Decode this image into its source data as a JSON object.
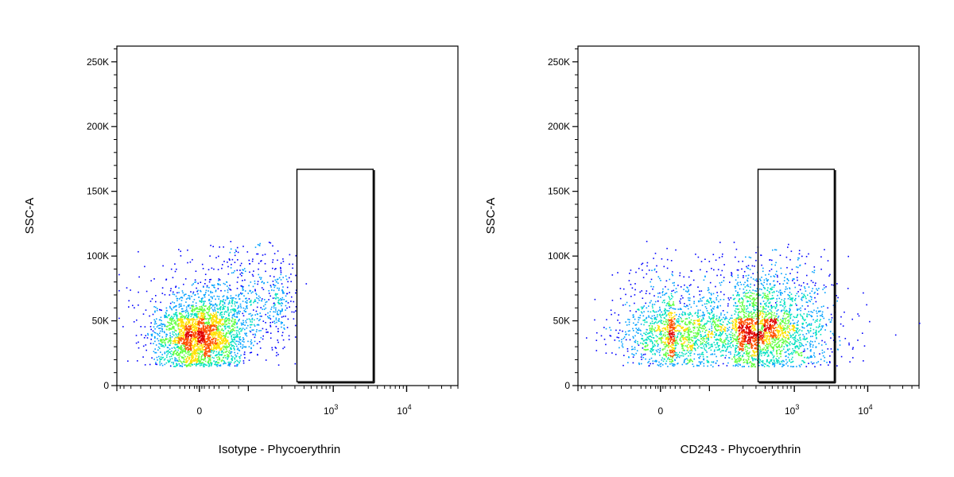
{
  "chart_data": [
    {
      "type": "scatter",
      "xlabel": "Isotype - Phycoerythrin",
      "ylabel": "SSC-A",
      "ylim": [
        0,
        262144
      ],
      "y_ticks": [
        {
          "value": 0,
          "label": "0"
        },
        {
          "value": 50000,
          "label": "50K"
        },
        {
          "value": 100000,
          "label": "100K"
        },
        {
          "value": 150000,
          "label": "150K"
        },
        {
          "value": 200000,
          "label": "200K"
        },
        {
          "value": 250000,
          "label": "250K"
        }
      ],
      "x_scale": "biexponential",
      "xlim": [
        -200,
        50000
      ],
      "x_ticks": [
        {
          "value": 0,
          "base": "0",
          "exp": ""
        },
        {
          "value": 1000,
          "base": "10",
          "exp": "3"
        },
        {
          "value": 10000,
          "base": "10",
          "exp": "4"
        }
      ],
      "gate": {
        "x_min": 320,
        "x_max": 3500,
        "y_min": 3000,
        "y_max": 167000
      },
      "population": {
        "events": 3000,
        "clusters": [
          {
            "x": 0,
            "x_spread": 45,
            "y": 38000,
            "y_spread": 14000,
            "weight": 0.75
          },
          {
            "x": 80,
            "x_spread": 90,
            "y": 65000,
            "y_spread": 20000,
            "weight": 0.25
          }
        ],
        "y_min": 15000,
        "y_max": 112000
      },
      "density_colors": [
        "#0000ff",
        "#00a0ff",
        "#00e0c0",
        "#60ff40",
        "#ffe000",
        "#ff5000",
        "#e00000"
      ]
    },
    {
      "type": "scatter",
      "xlabel": "CD243 - Phycoerythrin",
      "ylabel": "SSC-A",
      "ylim": [
        0,
        262144
      ],
      "y_ticks": [
        {
          "value": 0,
          "label": "0"
        },
        {
          "value": 50000,
          "label": "50K"
        },
        {
          "value": 100000,
          "label": "100K"
        },
        {
          "value": 150000,
          "label": "150K"
        },
        {
          "value": 200000,
          "label": "200K"
        },
        {
          "value": 250000,
          "label": "250K"
        }
      ],
      "x_scale": "biexponential",
      "xlim": [
        -200,
        50000
      ],
      "x_ticks": [
        {
          "value": 0,
          "base": "0",
          "exp": ""
        },
        {
          "value": 1000,
          "base": "10",
          "exp": "3"
        },
        {
          "value": 10000,
          "base": "10",
          "exp": "4"
        }
      ],
      "gate": {
        "x_min": 320,
        "x_max": 3500,
        "y_min": 3000,
        "y_max": 167000
      },
      "population": {
        "events": 3800,
        "clusters": [
          {
            "x": 220,
            "x_spread": 0.55,
            "log": true,
            "y": 38000,
            "y_spread": 13000,
            "weight": 0.7
          },
          {
            "x": 350,
            "x_spread": 0.45,
            "log": true,
            "y": 62000,
            "y_spread": 20000,
            "weight": 0.3
          }
        ],
        "y_min": 15000,
        "y_max": 112000
      },
      "density_colors": [
        "#0000ff",
        "#00a0ff",
        "#00e0c0",
        "#60ff40",
        "#ffe000",
        "#ff5000",
        "#e00000"
      ]
    }
  ]
}
